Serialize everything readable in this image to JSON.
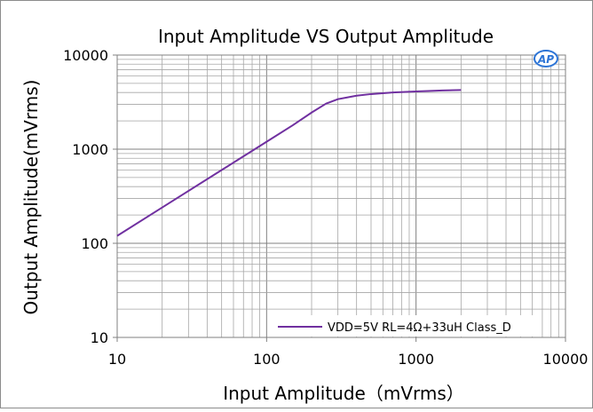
{
  "chart_data": {
    "type": "line",
    "title": "Input Amplitude VS Output Amplitude",
    "xlabel": "Input  Amplitude（mVrms）",
    "ylabel": "Output Amplitude(mVrms)",
    "x_scale": "log",
    "y_scale": "log",
    "xlim": [
      10,
      10000
    ],
    "ylim": [
      10,
      10000
    ],
    "x_ticks": [
      "10",
      "100",
      "1000",
      "10000"
    ],
    "y_ticks": [
      "10",
      "100",
      "1000",
      "10000"
    ],
    "grid": true,
    "legend_position": "bottom-right",
    "logo_text": "AP",
    "series": [
      {
        "name": "VDD=5V RL=4Ω+33uH Class_D",
        "color": "#7030a0",
        "x": [
          10,
          20,
          50,
          100,
          150,
          200,
          250,
          300,
          400,
          500,
          700,
          1000,
          1500,
          2000
        ],
        "y": [
          120,
          240,
          600,
          1200,
          1800,
          2450,
          3050,
          3400,
          3700,
          3850,
          4000,
          4100,
          4200,
          4250
        ]
      }
    ]
  }
}
